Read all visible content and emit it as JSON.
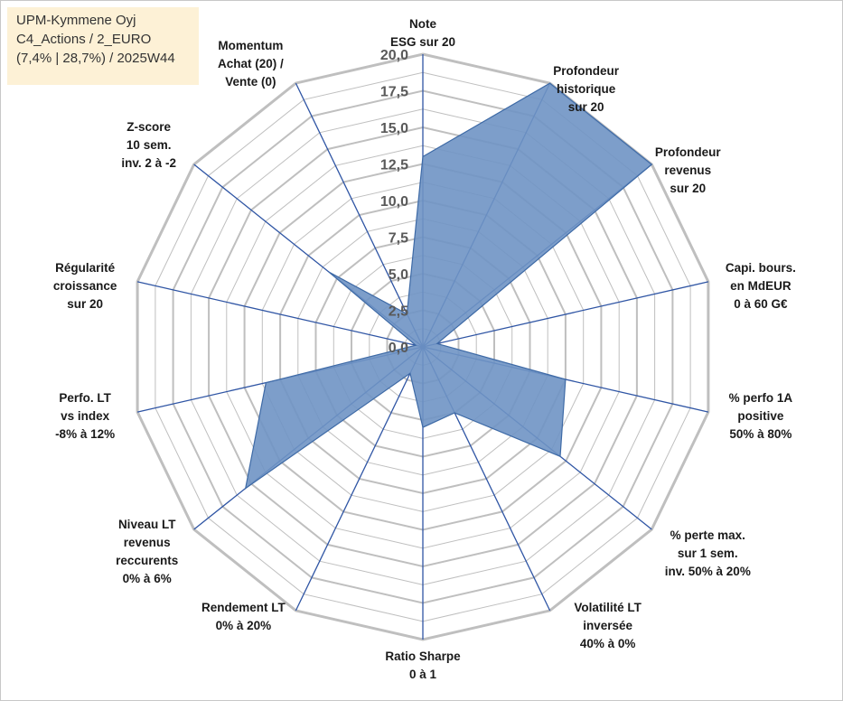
{
  "info_box": {
    "line1": "UPM-Kymmene Oyj",
    "line2": "C4_Actions / 2_EURO",
    "line3": "(7,4% | 28,7%) / 2025W44"
  },
  "colors": {
    "area_fill": "#6f94c4",
    "area_stroke": "#3e6aa6",
    "spoke": "#2f55a4",
    "grid": "#bfbfbf",
    "info_bg": "#fdf1d6"
  },
  "chart_data": {
    "type": "radar",
    "r_range": [
      0,
      20
    ],
    "r_ticks": [
      "0,0",
      "2,5",
      "5,0",
      "7,5",
      "10,0",
      "12,5",
      "15,0",
      "17,5",
      "20,0"
    ],
    "axes": [
      {
        "label": [
          "Note",
          "ESG sur 20"
        ],
        "value": 13.0
      },
      {
        "label": [
          "Profondeur",
          "historique",
          "sur 20"
        ],
        "value": 20.0
      },
      {
        "label": [
          "Profondeur",
          "revenus",
          "sur 20"
        ],
        "value": 20.0
      },
      {
        "label": [
          "Capi. bours.",
          "en MdEUR",
          "0 à 60 G€"
        ],
        "value": 1.0
      },
      {
        "label": [
          "% perfo 1A",
          "positive",
          "50% à 80%"
        ],
        "value": 10.0
      },
      {
        "label": [
          "% perte max.",
          "sur 1 sem.",
          "inv. 50% à 20%"
        ],
        "value": 12.0
      },
      {
        "label": [
          "Volatilité LT",
          "inversée",
          "40% à 0%"
        ],
        "value": 5.0
      },
      {
        "label": [
          "Ratio Sharpe",
          "0 à 1"
        ],
        "value": 5.5
      },
      {
        "label": [
          "Rendement LT",
          "0% à 20%"
        ],
        "value": 2.0
      },
      {
        "label": [
          "Niveau LT",
          "revenus",
          "reccurents",
          "0% à 6%"
        ],
        "value": 15.5
      },
      {
        "label": [
          "Perfo. LT",
          "vs index",
          "-8% à 12%"
        ],
        "value": 11.0
      },
      {
        "label": [
          "Régularité",
          "croissance",
          "sur 20"
        ],
        "value": 0.5
      },
      {
        "label": [
          "Z-score",
          "10 sem.",
          "inv. 2 à -2"
        ],
        "value": 8.2
      },
      {
        "label": [
          "Momentum",
          "Achat (20) /",
          "Vente (0)"
        ],
        "value": 2.5
      }
    ]
  }
}
